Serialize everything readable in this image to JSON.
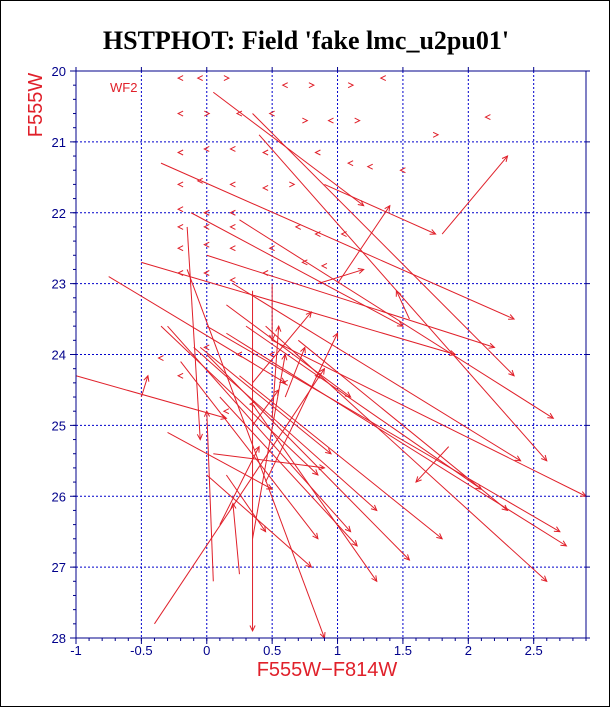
{
  "chart_data": {
    "type": "scatter",
    "title": "HSTPHOT: Field 'fake lmc_u2pu01'",
    "xlabel": "F555W−F814W",
    "ylabel": "F555W",
    "annotation": "WF2",
    "xlim": [
      -1.0,
      2.9
    ],
    "ylim": [
      28,
      20
    ],
    "x_ticks": [
      "-1",
      "-0.5",
      "0",
      "0.5",
      "1",
      "1.5",
      "2",
      "2.5"
    ],
    "y_ticks": [
      "20",
      "21",
      "22",
      "23",
      "24",
      "25",
      "26",
      "27",
      "28"
    ],
    "grid": true,
    "colors": {
      "marks": "#e0202a",
      "axes": "#00008b",
      "grid": "#0000cc"
    },
    "vectors": [
      [
        0.05,
        20.3,
        1.2,
        21.9
      ],
      [
        0.35,
        20.6,
        2.35,
        24.3
      ],
      [
        0.4,
        20.9,
        2.6,
        25.5
      ],
      [
        0.9,
        21.6,
        1.75,
        22.3
      ],
      [
        -0.12,
        22.0,
        1.5,
        23.6
      ],
      [
        1.8,
        22.3,
        2.3,
        21.2
      ],
      [
        1.0,
        23.0,
        1.4,
        21.9
      ],
      [
        0.85,
        23.0,
        1.2,
        22.8
      ],
      [
        -0.35,
        21.3,
        2.35,
        23.5
      ],
      [
        0.25,
        22.1,
        2.65,
        24.9
      ],
      [
        0.0,
        22.6,
        2.2,
        23.9
      ],
      [
        -0.5,
        22.7,
        1.9,
        24.0
      ],
      [
        -0.75,
        22.9,
        0.6,
        24.4
      ],
      [
        0.2,
        23.0,
        2.4,
        25.5
      ],
      [
        0.0,
        23.6,
        2.7,
        26.5
      ],
      [
        0.5,
        23.8,
        2.9,
        26.0
      ],
      [
        0.15,
        23.7,
        2.75,
        26.7
      ],
      [
        0.3,
        23.6,
        2.1,
        25.9
      ],
      [
        -0.05,
        23.9,
        0.95,
        25.4
      ],
      [
        0.45,
        23.6,
        2.6,
        27.2
      ],
      [
        0.7,
        23.8,
        2.3,
        26.2
      ],
      [
        -0.3,
        23.6,
        1.1,
        26.5
      ],
      [
        -1.0,
        24.3,
        0.15,
        24.9
      ],
      [
        -0.2,
        24.1,
        0.85,
        26.6
      ],
      [
        -0.15,
        22.2,
        -0.05,
        25.2
      ],
      [
        -0.35,
        23.6,
        0.85,
        25.7
      ],
      [
        0.05,
        25.4,
        0.9,
        25.6
      ],
      [
        0.0,
        24.0,
        1.55,
        26.9
      ],
      [
        0.1,
        24.6,
        1.15,
        26.7
      ],
      [
        0.25,
        24.3,
        1.8,
        26.6
      ],
      [
        0.35,
        24.7,
        1.3,
        27.2
      ],
      [
        -0.5,
        24.6,
        -0.45,
        24.3
      ],
      [
        -0.4,
        27.8,
        0.9,
        24.2
      ],
      [
        0.1,
        26.4,
        0.4,
        25.3
      ],
      [
        0.35,
        25.0,
        0.55,
        24.5
      ],
      [
        -0.3,
        25.1,
        0.5,
        25.9
      ],
      [
        0.05,
        27.2,
        0.0,
        24.8
      ],
      [
        0.25,
        27.1,
        0.2,
        26.1
      ],
      [
        0.35,
        26.6,
        0.6,
        24.0
      ],
      [
        0.45,
        25.8,
        1.0,
        23.7
      ],
      [
        0.0,
        25.7,
        0.8,
        27.0
      ],
      [
        0.35,
        24.4,
        0.8,
        23.4
      ],
      [
        0.5,
        24.9,
        0.55,
        23.6
      ],
      [
        0.6,
        24.6,
        0.75,
        23.9
      ],
      [
        -0.1,
        23.9,
        1.3,
        26.2
      ],
      [
        0.15,
        23.3,
        1.1,
        24.6
      ],
      [
        0.5,
        23.0,
        0.5,
        23.8
      ],
      [
        1.55,
        23.5,
        1.45,
        23.1
      ],
      [
        -0.15,
        22.8,
        0.9,
        28.0
      ],
      [
        0.35,
        23.1,
        0.35,
        27.9
      ],
      [
        1.85,
        25.3,
        1.6,
        25.8
      ],
      [
        0.15,
        25.7,
        0.45,
        26.5
      ]
    ],
    "chevrons": [
      [
        -0.2,
        20.1,
        "<"
      ],
      [
        -0.05,
        20.1,
        "<"
      ],
      [
        0.15,
        20.1,
        ">"
      ],
      [
        0.6,
        20.2,
        "<"
      ],
      [
        0.8,
        20.2,
        ">"
      ],
      [
        1.1,
        20.2,
        ">"
      ],
      [
        1.35,
        20.1,
        "<"
      ],
      [
        -0.2,
        20.6,
        "<"
      ],
      [
        0.0,
        20.6,
        ">"
      ],
      [
        0.25,
        20.6,
        "<"
      ],
      [
        0.5,
        20.6,
        "<"
      ],
      [
        0.75,
        20.7,
        ">"
      ],
      [
        0.95,
        20.7,
        "<"
      ],
      [
        1.15,
        20.7,
        ">"
      ],
      [
        1.75,
        20.9,
        ">"
      ],
      [
        2.15,
        20.65,
        "<"
      ],
      [
        -0.2,
        21.15,
        "<"
      ],
      [
        0.0,
        21.1,
        "<"
      ],
      [
        0.2,
        21.1,
        "<"
      ],
      [
        0.45,
        21.15,
        "<"
      ],
      [
        0.85,
        21.15,
        "<"
      ],
      [
        1.1,
        21.3,
        "<"
      ],
      [
        1.25,
        21.35,
        "<"
      ],
      [
        1.5,
        21.4,
        "<"
      ],
      [
        -0.2,
        21.6,
        "<"
      ],
      [
        -0.05,
        21.55,
        "<"
      ],
      [
        0.2,
        21.6,
        "<"
      ],
      [
        0.45,
        21.65,
        "<"
      ],
      [
        0.65,
        21.6,
        ">"
      ],
      [
        -0.2,
        21.95,
        "<"
      ],
      [
        0.0,
        22.0,
        "<"
      ],
      [
        0.2,
        22.0,
        "<"
      ],
      [
        -0.2,
        22.2,
        "<"
      ],
      [
        0.0,
        22.2,
        "<"
      ],
      [
        0.2,
        22.2,
        "<"
      ],
      [
        0.7,
        22.2,
        "<"
      ],
      [
        0.85,
        22.3,
        "<"
      ],
      [
        1.05,
        22.3,
        "<"
      ],
      [
        -0.2,
        22.5,
        "<"
      ],
      [
        0.0,
        22.45,
        "<"
      ],
      [
        0.2,
        22.5,
        "<"
      ],
      [
        0.5,
        22.5,
        "<"
      ],
      [
        0.75,
        22.7,
        "<"
      ],
      [
        -0.2,
        22.85,
        "<"
      ],
      [
        0.0,
        22.85,
        "<"
      ],
      [
        0.2,
        22.95,
        "<"
      ],
      [
        0.45,
        22.85,
        "<"
      ],
      [
        0.9,
        22.75,
        "<"
      ],
      [
        -0.35,
        24.05,
        "<"
      ],
      [
        -0.2,
        24.3,
        "<"
      ],
      [
        0.0,
        23.9,
        "<"
      ],
      [
        0.25,
        24.0,
        "<"
      ],
      [
        0.5,
        24.0,
        "<"
      ],
      [
        0.6,
        24.4,
        "<"
      ],
      [
        0.85,
        24.3,
        "<"
      ],
      [
        0.15,
        24.8,
        "<"
      ],
      [
        0.35,
        24.7,
        "<"
      ]
    ]
  }
}
